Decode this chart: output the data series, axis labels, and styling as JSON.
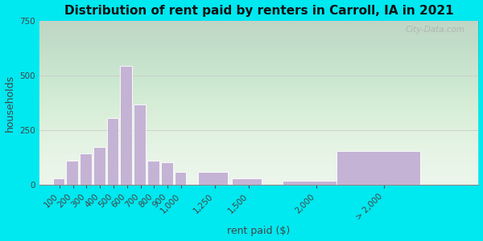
{
  "title": "Distribution of rent paid by renters in Carroll, IA in 2021",
  "xlabel": "rent paid ($)",
  "ylabel": "households",
  "bar_color": "#c5b3d5",
  "bar_edge_color": "#ffffff",
  "ylim": [
    0,
    750
  ],
  "yticks": [
    0,
    250,
    500,
    750
  ],
  "bg_outer": "#00e8f0",
  "title_fontsize": 11,
  "axis_label_fontsize": 9,
  "tick_fontsize": 7.5,
  "watermark_text": "City-Data.com",
  "bar_centers": [
    100,
    200,
    300,
    400,
    500,
    600,
    700,
    800,
    900,
    1000,
    1250,
    1500,
    2000,
    2500
  ],
  "bar_widths": [
    100,
    100,
    100,
    100,
    100,
    100,
    100,
    100,
    100,
    100,
    250,
    250,
    500,
    700
  ],
  "bar_values": [
    30,
    110,
    145,
    175,
    305,
    545,
    370,
    110,
    105,
    60,
    60,
    30,
    20,
    155
  ],
  "tick_positions": [
    100,
    200,
    300,
    400,
    500,
    600,
    700,
    800,
    900,
    1000,
    1250,
    1500,
    2000,
    2500
  ],
  "tick_labels": [
    "100",
    "200",
    "300",
    "400",
    "500",
    "600",
    "700",
    "800",
    "900",
    "1,000",
    "1,250",
    "1,500",
    "2,000",
    "> 2,000"
  ],
  "xlim": [
    -50,
    3200
  ]
}
